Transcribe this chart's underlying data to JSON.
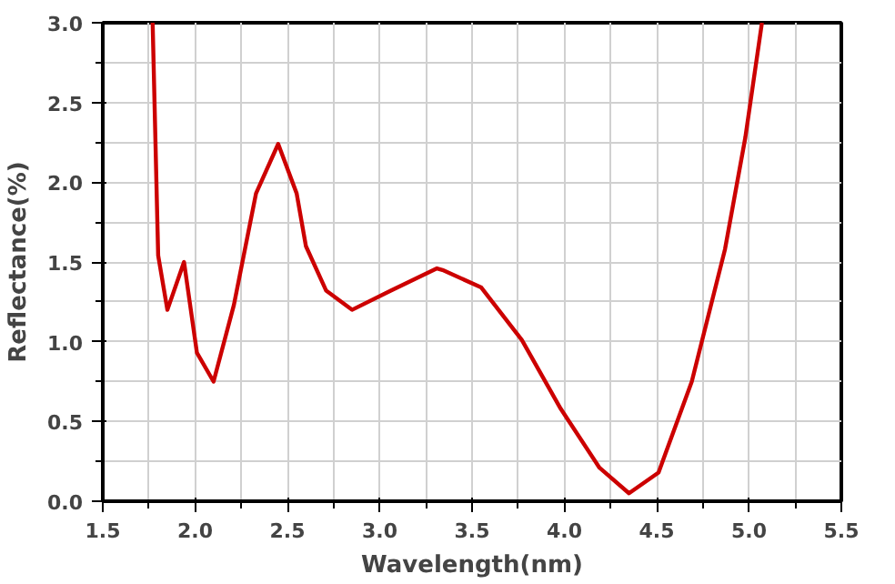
{
  "chart_data": {
    "type": "line",
    "xlabel": "Wavelength(nm)",
    "ylabel": "Reflectance(%)",
    "xlim": [
      1.5,
      5.5
    ],
    "ylim": [
      0,
      3.0
    ],
    "xticks": [
      {
        "value": 1.5,
        "label": "1.5"
      },
      {
        "value": 2.0,
        "label": "2.0"
      },
      {
        "value": 2.5,
        "label": "2.5"
      },
      {
        "value": 3.0,
        "label": "3.0"
      },
      {
        "value": 3.5,
        "label": "3.5"
      },
      {
        "value": 4.0,
        "label": "4.0"
      },
      {
        "value": 4.5,
        "label": "4.5"
      },
      {
        "value": 5.0,
        "label": "5.0"
      },
      {
        "value": 5.5,
        "label": "5.5"
      }
    ],
    "yticks": [
      {
        "value": 0,
        "label": "0.0"
      },
      {
        "value": 0.5,
        "label": "0.5"
      },
      {
        "value": 1.0,
        "label": "1.0"
      },
      {
        "value": 1.5,
        "label": "1.5"
      },
      {
        "value": 2.0,
        "label": "2.0"
      },
      {
        "value": 2.5,
        "label": "2.5"
      },
      {
        "value": 3.0,
        "label": "3.0"
      }
    ],
    "grid": true,
    "marker": "none",
    "line_style": "solid",
    "series": [
      {
        "color": "#cc0000",
        "x": [
          1.77,
          1.8,
          1.85,
          1.94,
          2.01,
          2.1,
          2.21,
          2.33,
          2.45,
          2.55,
          2.6,
          2.71,
          2.85,
          3.06,
          3.31,
          3.34,
          3.55,
          3.77,
          3.98,
          4.19,
          4.35,
          4.51,
          4.69,
          4.87,
          4.98,
          5.07
        ],
        "values": [
          3.0,
          1.54,
          1.2,
          1.5,
          0.93,
          0.75,
          1.23,
          1.93,
          2.24,
          1.93,
          1.6,
          1.32,
          1.2,
          1.32,
          1.46,
          1.45,
          1.34,
          1.01,
          0.58,
          0.21,
          0.05,
          0.18,
          0.75,
          1.58,
          2.28,
          3.0
        ]
      }
    ]
  }
}
